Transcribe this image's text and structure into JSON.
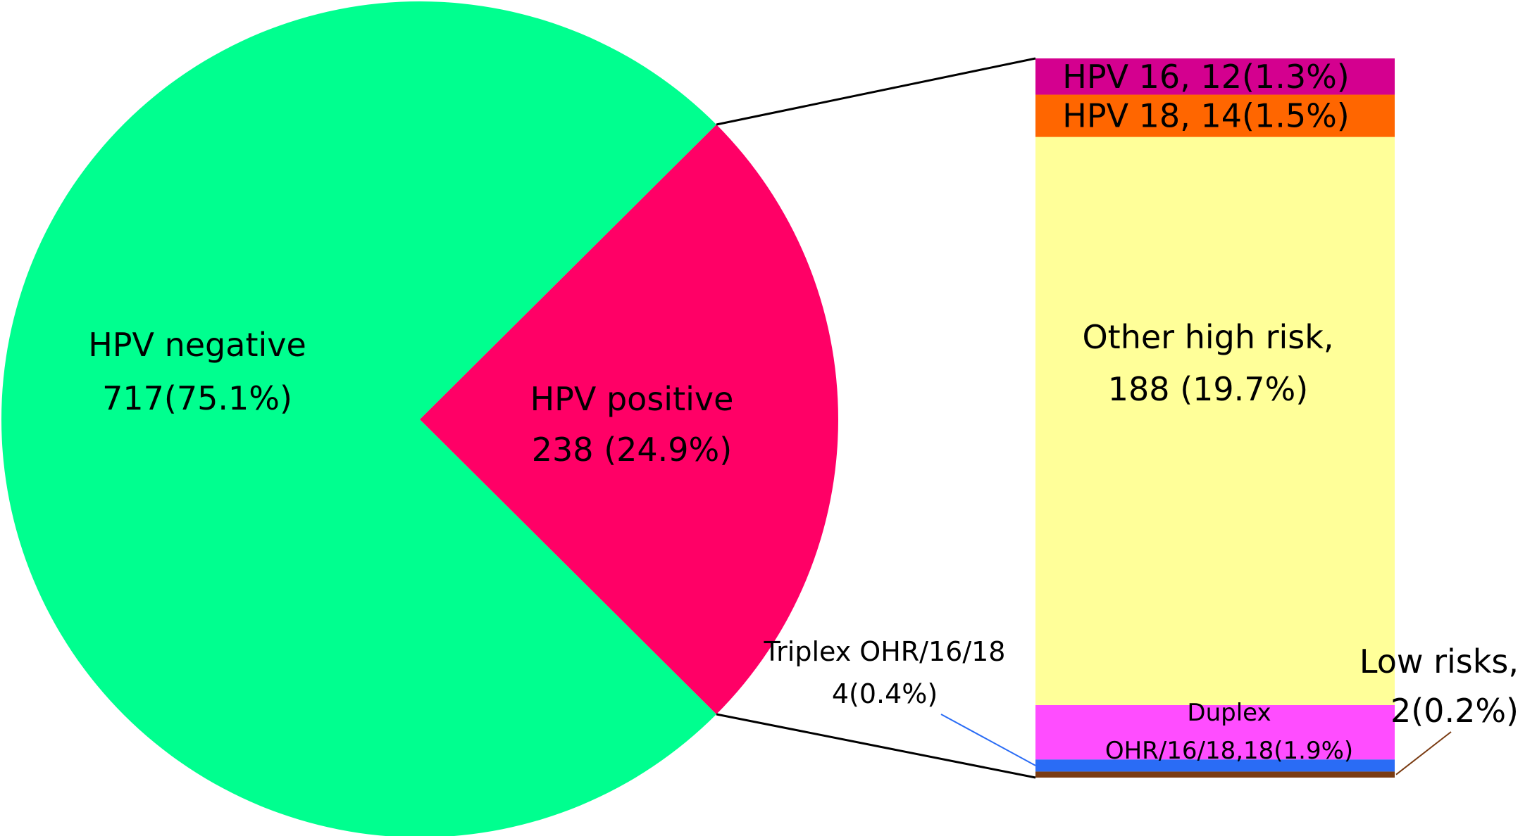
{
  "chart_data": [
    {
      "type": "pie",
      "slices": [
        {
          "name": "HPV negative",
          "value": 717,
          "percent": 75.1,
          "label_lines": [
            "HPV negative",
            "717(75.1%)"
          ],
          "color": "#00FF8F"
        },
        {
          "name": "HPV positive",
          "value": 238,
          "percent": 24.9,
          "label_lines": [
            "HPV positive",
            "238 (24.9%)"
          ],
          "color": "#FF0066"
        }
      ]
    },
    {
      "type": "bar",
      "stacked": true,
      "total": 238,
      "segments": [
        {
          "name": "Low risks",
          "value": 2,
          "percent": 0.2,
          "color": "#7A3B12",
          "label_lines": [
            "Low risks,",
            "2(0.2%)"
          ]
        },
        {
          "name": "Triplex OHR/16/18",
          "value": 4,
          "percent": 0.4,
          "color": "#2A6CF5",
          "label_lines": [
            "Triplex OHR/16/18",
            "4(0.4%)"
          ]
        },
        {
          "name": "Duplex OHR/16/18,18",
          "value": 18,
          "percent": 1.9,
          "color": "#FF4DFF",
          "label_lines": [
            "Duplex",
            "OHR/16/18,18(1.9%)"
          ]
        },
        {
          "name": "Other high risk",
          "value": 188,
          "percent": 19.7,
          "color": "#FFFF99",
          "label_lines": [
            "Other high risk,",
            "188 (19.7%)"
          ]
        },
        {
          "name": "HPV 18",
          "value": 14,
          "percent": 1.5,
          "color": "#FF6600",
          "label_lines": [
            "HPV 18,  14(1.5%)"
          ]
        },
        {
          "name": "HPV 16",
          "value": 12,
          "percent": 1.3,
          "color": "#D4008F",
          "label_lines": [
            "HPV 16, 12(1.3%)"
          ]
        }
      ]
    }
  ]
}
